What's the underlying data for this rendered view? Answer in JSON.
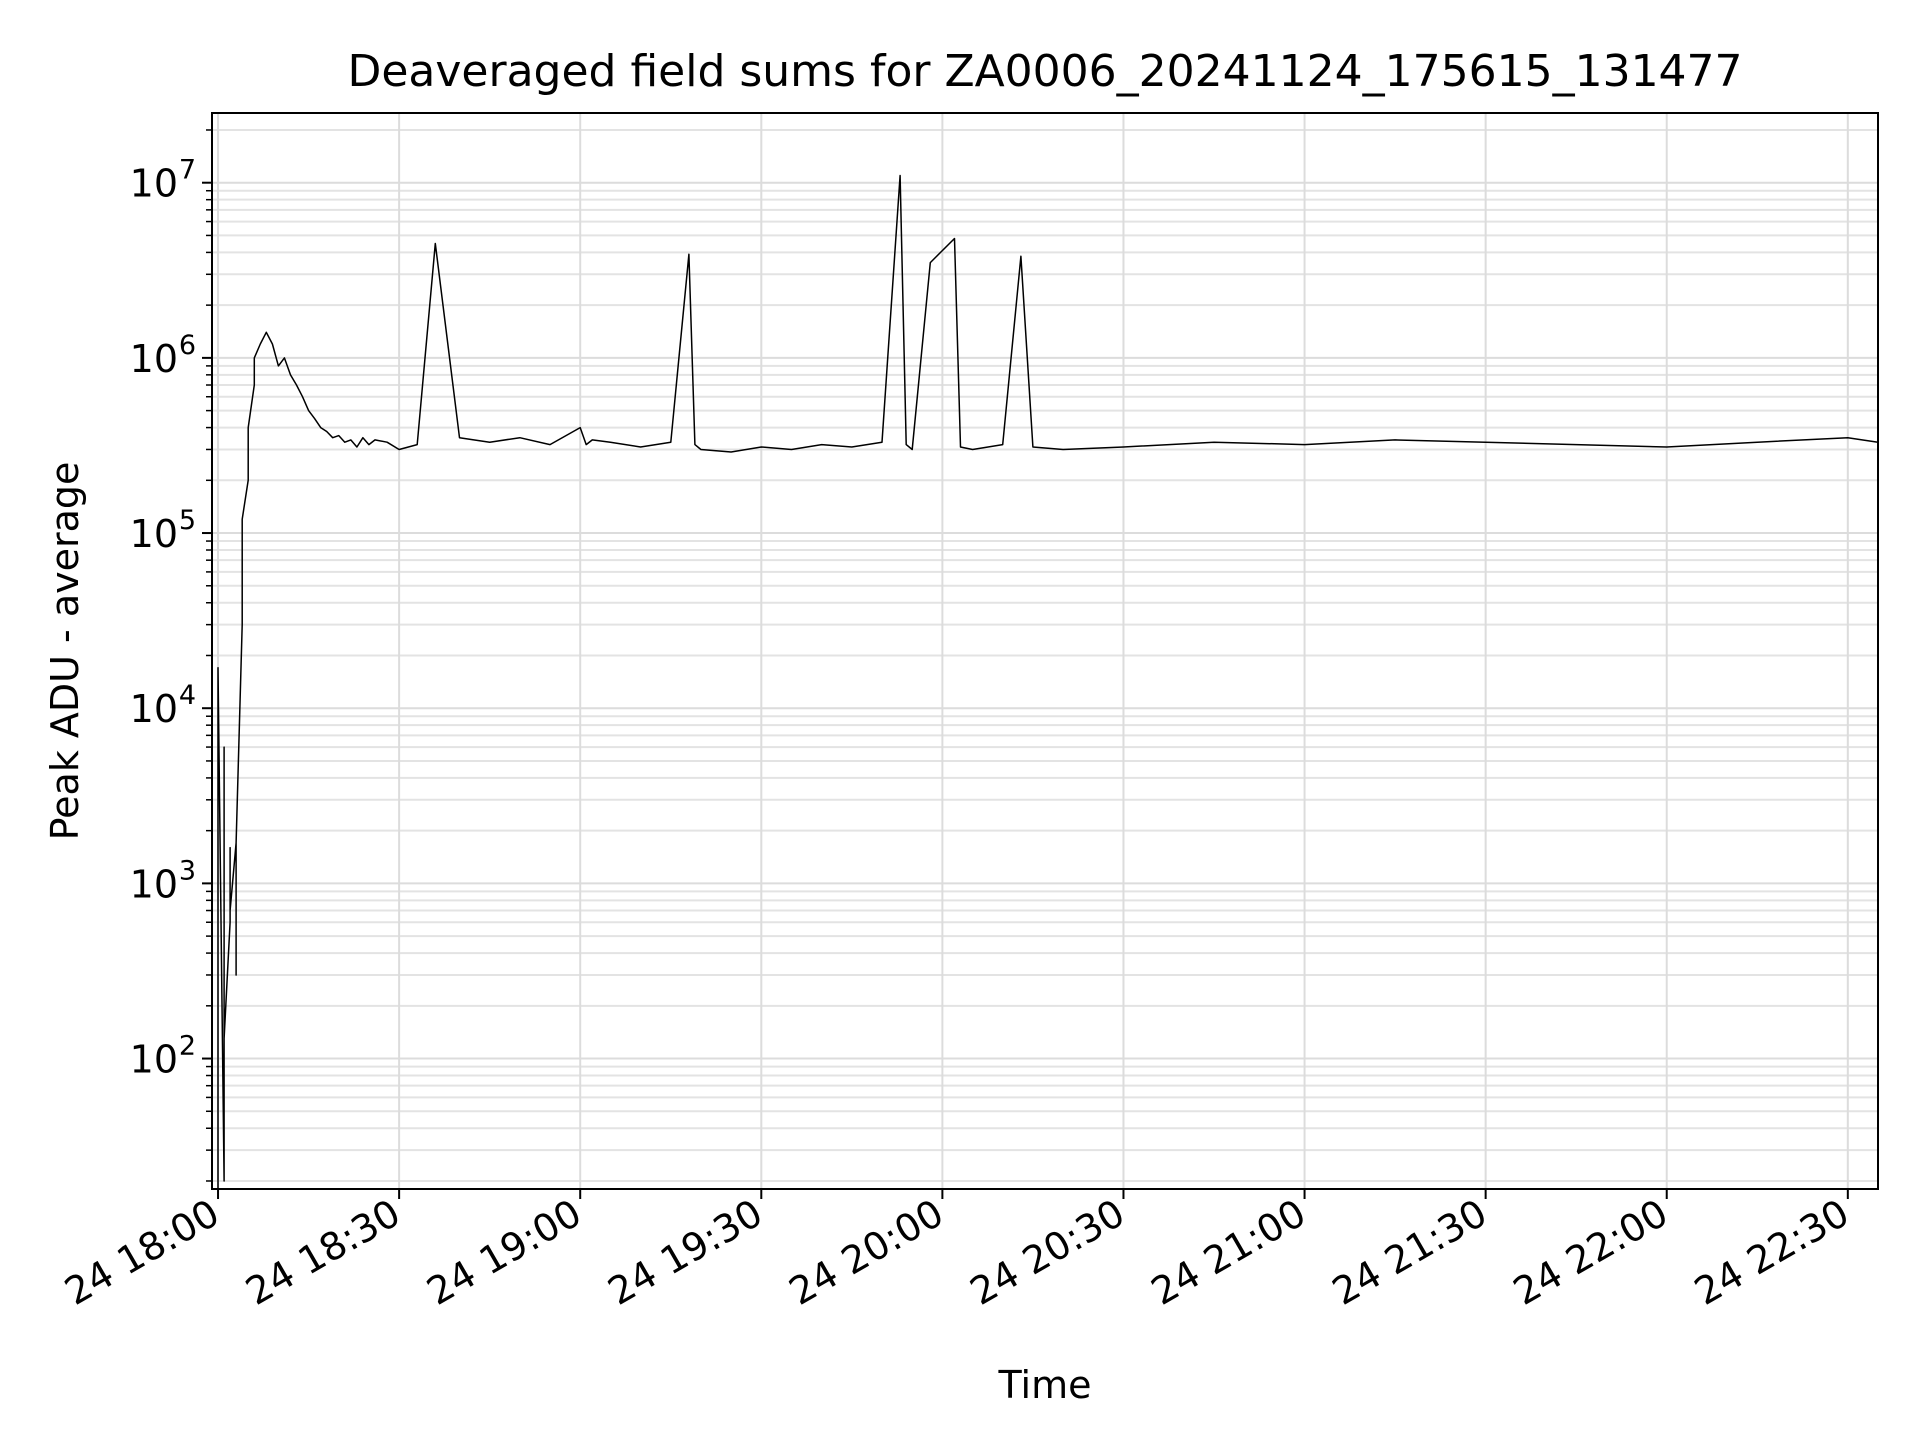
{
  "chart_data": {
    "type": "line",
    "title": "Deaveraged field sums for ZA0006_20241124_175615_131477",
    "xlabel": "Time",
    "ylabel": "Peak ADU - average",
    "yscale": "log",
    "ylim": [
      18,
      25000000
    ],
    "xlim": [
      "2024-11-24 17:59",
      "2024-11-24 22:35"
    ],
    "grid": "on (major and minor)",
    "line_color": "#000000",
    "x_ticks": [
      {
        "value": "2024-11-24 18:00",
        "label": "24 18:00"
      },
      {
        "value": "2024-11-24 18:30",
        "label": "24 18:30"
      },
      {
        "value": "2024-11-24 19:00",
        "label": "24 19:00"
      },
      {
        "value": "2024-11-24 19:30",
        "label": "24 19:30"
      },
      {
        "value": "2024-11-24 20:00",
        "label": "24 20:00"
      },
      {
        "value": "2024-11-24 20:30",
        "label": "24 20:30"
      },
      {
        "value": "2024-11-24 21:00",
        "label": "24 21:00"
      },
      {
        "value": "2024-11-24 21:30",
        "label": "24 21:30"
      },
      {
        "value": "2024-11-24 22:00",
        "label": "24 22:00"
      },
      {
        "value": "2024-11-24 22:30",
        "label": "24 22:30"
      }
    ],
    "y_ticks": [
      {
        "value": 100,
        "base": "10",
        "exp": "2"
      },
      {
        "value": 1000,
        "base": "10",
        "exp": "3"
      },
      {
        "value": 10000,
        "base": "10",
        "exp": "4"
      },
      {
        "value": 100000,
        "base": "10",
        "exp": "5"
      },
      {
        "value": 1000000,
        "base": "10",
        "exp": "6"
      },
      {
        "value": 10000000,
        "base": "10",
        "exp": "7"
      }
    ],
    "series": [
      {
        "x": [
          "2024-11-24 18:00",
          "2024-11-24 18:00",
          "2024-11-24 18:01",
          "2024-11-24 18:01",
          "2024-11-24 18:01",
          "2024-11-24 18:02",
          "2024-11-24 18:02",
          "2024-11-24 18:02",
          "2024-11-24 18:03",
          "2024-11-24 18:03",
          "2024-11-24 18:03",
          "2024-11-24 18:04",
          "2024-11-24 18:04",
          "2024-11-24 18:05",
          "2024-11-24 18:05",
          "2024-11-24 18:06",
          "2024-11-24 18:06",
          "2024-11-24 18:07",
          "2024-11-24 18:08",
          "2024-11-24 18:09",
          "2024-11-24 18:10",
          "2024-11-24 18:11",
          "2024-11-24 18:12",
          "2024-11-24 18:13",
          "2024-11-24 18:14",
          "2024-11-24 18:15",
          "2024-11-24 18:16",
          "2024-11-24 18:17",
          "2024-11-24 18:18",
          "2024-11-24 18:19",
          "2024-11-24 18:20",
          "2024-11-24 18:21",
          "2024-11-24 18:22",
          "2024-11-24 18:23",
          "2024-11-24 18:24",
          "2024-11-24 18:25",
          "2024-11-24 18:26",
          "2024-11-24 18:28",
          "2024-11-24 18:30",
          "2024-11-24 18:33",
          "2024-11-24 18:36",
          "2024-11-24 18:40",
          "2024-11-24 18:45",
          "2024-11-24 18:50",
          "2024-11-24 18:55",
          "2024-11-24 19:00",
          "2024-11-24 19:01",
          "2024-11-24 19:02",
          "2024-11-24 19:05",
          "2024-11-24 19:10",
          "2024-11-24 19:15",
          "2024-11-24 19:18",
          "2024-11-24 19:19",
          "2024-11-24 19:20",
          "2024-11-24 19:25",
          "2024-11-24 19:30",
          "2024-11-24 19:35",
          "2024-11-24 19:40",
          "2024-11-24 19:45",
          "2024-11-24 19:50",
          "2024-11-24 19:53",
          "2024-11-24 19:54",
          "2024-11-24 19:55",
          "2024-11-24 19:58",
          "2024-11-24 20:02",
          "2024-11-24 20:03",
          "2024-11-24 20:05",
          "2024-11-24 20:10",
          "2024-11-24 20:13",
          "2024-11-24 20:15",
          "2024-11-24 20:20",
          "2024-11-24 20:30",
          "2024-11-24 20:45",
          "2024-11-24 21:00",
          "2024-11-24 21:15",
          "2024-11-24 21:30",
          "2024-11-24 21:45",
          "2024-11-24 22:00",
          "2024-11-24 22:15",
          "2024-11-24 22:30",
          "2024-11-24 22:35"
        ],
        "y": [
          18,
          17000,
          20,
          6000,
          130,
          600,
          1600,
          700,
          1700,
          300,
          1700,
          30000,
          120000,
          200000,
          400000,
          700000,
          1000000,
          1200000,
          1400000,
          1200000,
          900000,
          1000000,
          800000,
          700000,
          600000,
          500000,
          450000,
          400000,
          380000,
          350000,
          360000,
          330000,
          340000,
          310000,
          350000,
          320000,
          340000,
          330000,
          300000,
          320000,
          4500000,
          350000,
          330000,
          350000,
          320000,
          400000,
          320000,
          340000,
          330000,
          310000,
          330000,
          3900000,
          320000,
          300000,
          290000,
          310000,
          300000,
          320000,
          310000,
          330000,
          11000000,
          320000,
          300000,
          3500000,
          4800000,
          310000,
          300000,
          320000,
          3800000,
          310000,
          300000,
          310000,
          330000,
          320000,
          340000,
          330000,
          320000,
          310000,
          330000,
          350000,
          330000
        ]
      }
    ]
  }
}
